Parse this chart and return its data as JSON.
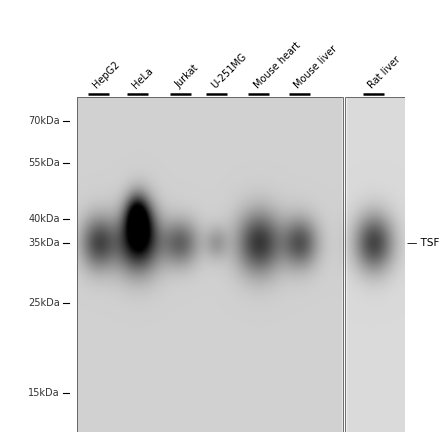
{
  "figure_width": 4.4,
  "figure_height": 4.41,
  "dpi": 100,
  "bg_color": "#ffffff",
  "lane_labels": [
    "HepG2",
    "HeLa",
    "Jurkat",
    "U-251MG",
    "Mouse heart",
    "Mouse liver",
    "Rat liver"
  ],
  "mw_labels": [
    "70kDa",
    "55kDa",
    "40kDa",
    "35kDa",
    "25kDa",
    "15kDa"
  ],
  "mw_positions": [
    70,
    55,
    40,
    35,
    25,
    15
  ],
  "band_label": "TSFM",
  "band_mw": 35,
  "y_min": 12,
  "y_max": 80,
  "label_fontsize": 7.0,
  "mw_fontsize": 7.0,
  "band_fontsize": 7.5
}
